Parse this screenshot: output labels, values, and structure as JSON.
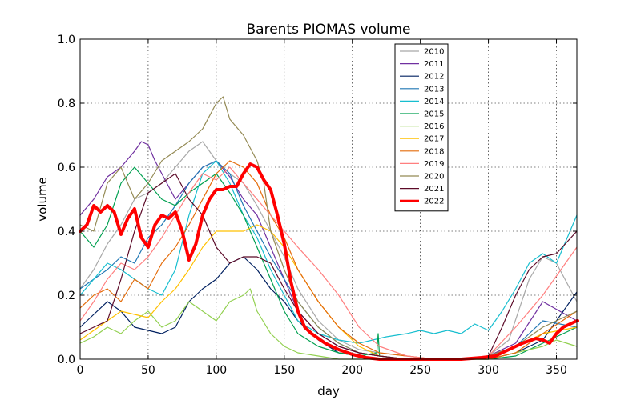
{
  "chart_data": {
    "type": "line",
    "title": "Barents PIOMAS volume",
    "xlabel": "day",
    "ylabel": "volume",
    "xlim": [
      0,
      365
    ],
    "ylim": [
      0,
      1.0
    ],
    "xticks": [
      0,
      50,
      100,
      150,
      200,
      250,
      300,
      350
    ],
    "yticks": [
      0.0,
      0.2,
      0.4,
      0.6,
      0.8,
      1.0
    ],
    "xtick_labels": [
      "0",
      "50",
      "100",
      "150",
      "200",
      "250",
      "300",
      "350"
    ],
    "ytick_labels": [
      "0.0",
      "0.2",
      "0.4",
      "0.6",
      "0.8",
      "1.0"
    ],
    "grid": true,
    "legend_position": "top-right",
    "series": [
      {
        "name": "2010",
        "color": "#a8a8a8",
        "width": 1.2,
        "x": [
          0,
          10,
          20,
          30,
          40,
          50,
          60,
          70,
          80,
          90,
          100,
          110,
          120,
          130,
          140,
          150,
          160,
          175,
          190,
          205,
          220,
          240,
          260,
          280,
          300,
          315,
          330,
          340,
          350,
          365
        ],
        "y": [
          0.22,
          0.28,
          0.36,
          0.42,
          0.5,
          0.52,
          0.55,
          0.6,
          0.65,
          0.68,
          0.62,
          0.58,
          0.55,
          0.48,
          0.4,
          0.32,
          0.22,
          0.12,
          0.06,
          0.03,
          0.02,
          0.01,
          0.0,
          0.0,
          0.01,
          0.06,
          0.25,
          0.32,
          0.3,
          0.18
        ]
      },
      {
        "name": "2011",
        "color": "#7030a0",
        "width": 1.2,
        "x": [
          0,
          10,
          20,
          30,
          40,
          45,
          50,
          55,
          60,
          70,
          80,
          90,
          100,
          110,
          120,
          130,
          140,
          150,
          160,
          175,
          190,
          205,
          220,
          240,
          260,
          280,
          300,
          320,
          340,
          365
        ],
        "y": [
          0.45,
          0.5,
          0.57,
          0.6,
          0.65,
          0.68,
          0.67,
          0.62,
          0.58,
          0.5,
          0.55,
          0.6,
          0.62,
          0.57,
          0.5,
          0.45,
          0.35,
          0.25,
          0.15,
          0.08,
          0.04,
          0.02,
          0.01,
          0.0,
          0.0,
          0.0,
          0.01,
          0.05,
          0.18,
          0.12
        ]
      },
      {
        "name": "2012",
        "color": "#002060",
        "width": 1.2,
        "x": [
          0,
          10,
          20,
          30,
          40,
          50,
          60,
          70,
          80,
          90,
          100,
          110,
          120,
          130,
          140,
          150,
          160,
          175,
          190,
          205,
          220,
          240,
          260,
          280,
          300,
          320,
          340,
          365
        ],
        "y": [
          0.1,
          0.14,
          0.18,
          0.15,
          0.1,
          0.09,
          0.08,
          0.1,
          0.18,
          0.22,
          0.25,
          0.3,
          0.32,
          0.28,
          0.22,
          0.18,
          0.12,
          0.06,
          0.02,
          0.01,
          0.0,
          0.0,
          0.0,
          0.0,
          0.0,
          0.02,
          0.06,
          0.21
        ]
      },
      {
        "name": "2013",
        "color": "#1f77b4",
        "width": 1.2,
        "x": [
          0,
          10,
          20,
          30,
          40,
          50,
          60,
          70,
          80,
          90,
          100,
          110,
          120,
          130,
          140,
          150,
          160,
          175,
          190,
          205,
          220,
          240,
          260,
          280,
          300,
          320,
          340,
          365
        ],
        "y": [
          0.22,
          0.25,
          0.28,
          0.32,
          0.3,
          0.38,
          0.42,
          0.48,
          0.55,
          0.6,
          0.62,
          0.58,
          0.48,
          0.4,
          0.32,
          0.25,
          0.18,
          0.1,
          0.05,
          0.02,
          0.01,
          0.0,
          0.0,
          0.0,
          0.01,
          0.04,
          0.12,
          0.1
        ]
      },
      {
        "name": "2014",
        "color": "#17becf",
        "width": 1.2,
        "x": [
          0,
          10,
          20,
          30,
          40,
          50,
          60,
          70,
          80,
          90,
          100,
          110,
          120,
          130,
          140,
          150,
          160,
          175,
          190,
          205,
          215,
          225,
          240,
          250,
          260,
          270,
          280,
          290,
          300,
          310,
          320,
          330,
          340,
          350,
          360,
          365
        ],
        "y": [
          0.2,
          0.25,
          0.3,
          0.28,
          0.25,
          0.22,
          0.2,
          0.28,
          0.45,
          0.58,
          0.62,
          0.55,
          0.45,
          0.38,
          0.28,
          0.2,
          0.12,
          0.08,
          0.06,
          0.05,
          0.06,
          0.07,
          0.08,
          0.09,
          0.08,
          0.09,
          0.08,
          0.11,
          0.09,
          0.15,
          0.22,
          0.3,
          0.33,
          0.3,
          0.4,
          0.45
        ]
      },
      {
        "name": "2015",
        "color": "#00a050",
        "width": 1.2,
        "x": [
          0,
          10,
          20,
          30,
          40,
          50,
          60,
          70,
          80,
          90,
          100,
          110,
          120,
          130,
          140,
          150,
          160,
          175,
          190,
          205,
          218,
          219,
          220,
          240,
          260,
          280,
          300,
          320,
          340,
          365
        ],
        "y": [
          0.4,
          0.35,
          0.42,
          0.55,
          0.6,
          0.55,
          0.5,
          0.48,
          0.52,
          0.55,
          0.58,
          0.52,
          0.45,
          0.35,
          0.25,
          0.15,
          0.08,
          0.04,
          0.02,
          0.01,
          0.02,
          0.08,
          0.01,
          0.0,
          0.0,
          0.0,
          0.0,
          0.01,
          0.05,
          0.1
        ]
      },
      {
        "name": "2016",
        "color": "#92d050",
        "width": 1.2,
        "x": [
          0,
          10,
          20,
          30,
          40,
          50,
          60,
          70,
          80,
          90,
          100,
          110,
          120,
          125,
          130,
          140,
          150,
          160,
          175,
          190,
          205,
          220,
          240,
          260,
          280,
          300,
          320,
          340,
          350,
          365
        ],
        "y": [
          0.05,
          0.07,
          0.1,
          0.08,
          0.12,
          0.15,
          0.1,
          0.12,
          0.18,
          0.15,
          0.12,
          0.18,
          0.2,
          0.22,
          0.15,
          0.08,
          0.04,
          0.02,
          0.01,
          0.0,
          0.0,
          0.0,
          0.0,
          0.0,
          0.0,
          0.0,
          0.02,
          0.04,
          0.06,
          0.04
        ]
      },
      {
        "name": "2017",
        "color": "#ffc000",
        "width": 1.2,
        "x": [
          0,
          10,
          20,
          30,
          40,
          50,
          60,
          70,
          80,
          90,
          100,
          110,
          120,
          130,
          140,
          150,
          160,
          175,
          190,
          205,
          220,
          240,
          260,
          280,
          300,
          320,
          340,
          365
        ],
        "y": [
          0.06,
          0.09,
          0.12,
          0.15,
          0.14,
          0.13,
          0.18,
          0.22,
          0.28,
          0.35,
          0.4,
          0.4,
          0.4,
          0.42,
          0.4,
          0.35,
          0.28,
          0.18,
          0.1,
          0.04,
          0.01,
          0.0,
          0.0,
          0.0,
          0.01,
          0.04,
          0.08,
          0.1
        ]
      },
      {
        "name": "2018",
        "color": "#e46c0a",
        "width": 1.2,
        "x": [
          0,
          10,
          20,
          30,
          40,
          50,
          60,
          70,
          80,
          90,
          100,
          110,
          120,
          130,
          140,
          150,
          160,
          175,
          190,
          205,
          220,
          240,
          260,
          280,
          300,
          320,
          340,
          365
        ],
        "y": [
          0.16,
          0.2,
          0.22,
          0.18,
          0.25,
          0.22,
          0.3,
          0.35,
          0.42,
          0.5,
          0.58,
          0.62,
          0.6,
          0.55,
          0.45,
          0.38,
          0.28,
          0.18,
          0.1,
          0.05,
          0.02,
          0.01,
          0.0,
          0.0,
          0.0,
          0.02,
          0.08,
          0.15
        ]
      },
      {
        "name": "2019",
        "color": "#ff7f7f",
        "width": 1.2,
        "x": [
          0,
          10,
          20,
          30,
          40,
          50,
          60,
          70,
          80,
          90,
          100,
          110,
          120,
          130,
          140,
          150,
          160,
          175,
          190,
          205,
          220,
          240,
          260,
          280,
          300,
          320,
          340,
          365
        ],
        "y": [
          0.12,
          0.18,
          0.25,
          0.3,
          0.28,
          0.32,
          0.38,
          0.45,
          0.52,
          0.58,
          0.56,
          0.6,
          0.55,
          0.5,
          0.45,
          0.4,
          0.35,
          0.28,
          0.2,
          0.1,
          0.04,
          0.01,
          0.0,
          0.0,
          0.01,
          0.1,
          0.2,
          0.35
        ]
      },
      {
        "name": "2020",
        "color": "#948a54",
        "width": 1.2,
        "x": [
          0,
          10,
          20,
          30,
          40,
          50,
          60,
          70,
          80,
          90,
          100,
          105,
          110,
          120,
          130,
          135,
          140,
          150,
          160,
          175,
          190,
          205,
          220,
          240,
          260,
          280,
          300,
          320,
          340,
          365
        ],
        "y": [
          0.42,
          0.4,
          0.55,
          0.6,
          0.5,
          0.55,
          0.62,
          0.65,
          0.68,
          0.72,
          0.8,
          0.82,
          0.75,
          0.7,
          0.62,
          0.55,
          0.4,
          0.28,
          0.18,
          0.1,
          0.05,
          0.02,
          0.01,
          0.0,
          0.0,
          0.0,
          0.01,
          0.04,
          0.1,
          0.15
        ]
      },
      {
        "name": "2021",
        "color": "#5c0a28",
        "width": 1.2,
        "x": [
          0,
          10,
          20,
          30,
          40,
          50,
          60,
          70,
          80,
          90,
          100,
          110,
          120,
          130,
          140,
          150,
          160,
          175,
          190,
          205,
          220,
          240,
          260,
          280,
          300,
          310,
          320,
          330,
          340,
          350,
          365
        ],
        "y": [
          0.08,
          0.1,
          0.12,
          0.25,
          0.4,
          0.52,
          0.55,
          0.58,
          0.5,
          0.45,
          0.35,
          0.3,
          0.32,
          0.32,
          0.3,
          0.22,
          0.15,
          0.08,
          0.04,
          0.02,
          0.01,
          0.0,
          0.0,
          0.0,
          0.01,
          0.1,
          0.2,
          0.28,
          0.32,
          0.33,
          0.4
        ]
      },
      {
        "name": "2022",
        "color": "#ff0000",
        "width": 4,
        "x": [
          0,
          5,
          10,
          15,
          20,
          25,
          30,
          35,
          40,
          45,
          50,
          55,
          60,
          65,
          70,
          75,
          80,
          85,
          90,
          95,
          100,
          105,
          110,
          115,
          120,
          125,
          130,
          135,
          140,
          145,
          150,
          155,
          160,
          165,
          170,
          180,
          190,
          200,
          210,
          220,
          240,
          260,
          280,
          295,
          305,
          315,
          325,
          335,
          340,
          345,
          350,
          355,
          360,
          365
        ],
        "y": [
          0.4,
          0.42,
          0.48,
          0.46,
          0.48,
          0.46,
          0.39,
          0.44,
          0.47,
          0.38,
          0.35,
          0.42,
          0.45,
          0.44,
          0.46,
          0.4,
          0.31,
          0.36,
          0.45,
          0.5,
          0.53,
          0.53,
          0.54,
          0.54,
          0.58,
          0.61,
          0.6,
          0.56,
          0.53,
          0.45,
          0.36,
          0.24,
          0.15,
          0.1,
          0.08,
          0.05,
          0.03,
          0.015,
          0.005,
          0.0,
          0.0,
          0.0,
          0.0,
          0.005,
          0.01,
          0.03,
          0.05,
          0.065,
          0.06,
          0.05,
          0.08,
          0.1,
          0.11,
          0.12
        ]
      }
    ]
  }
}
